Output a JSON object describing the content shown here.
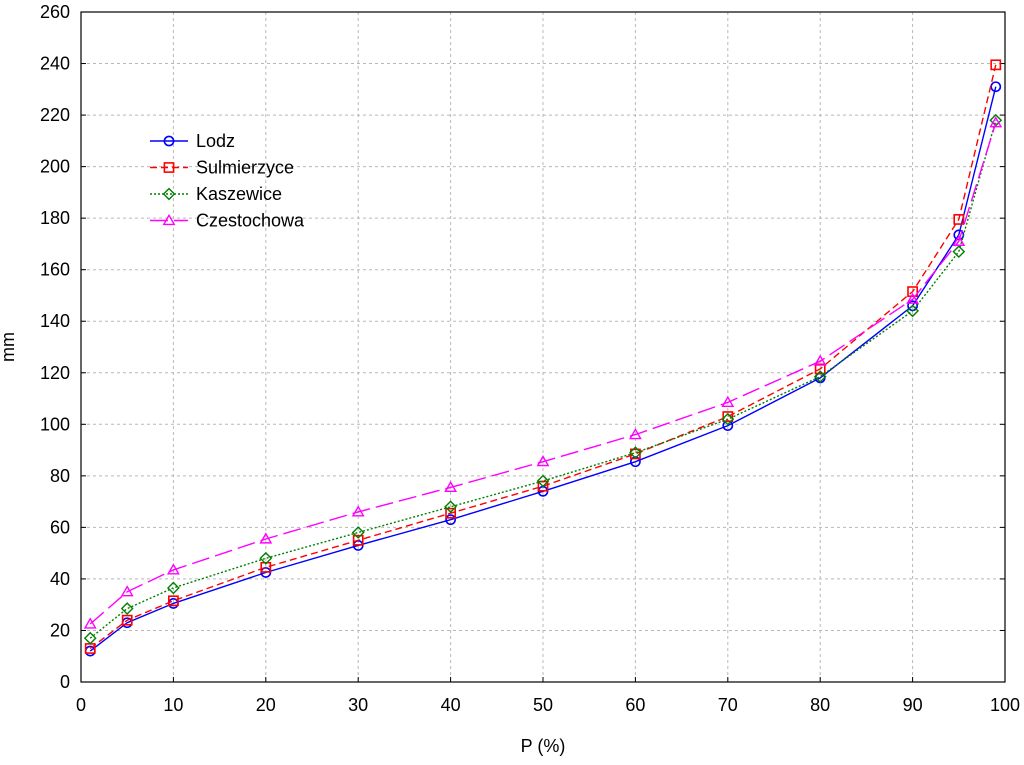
{
  "chart_data": {
    "type": "line",
    "xlabel": "P (%)",
    "ylabel": "mm",
    "xlim": [
      0,
      100
    ],
    "ylim": [
      0,
      260
    ],
    "xticks": [
      0,
      10,
      20,
      30,
      40,
      50,
      60,
      70,
      80,
      90,
      100
    ],
    "yticks": [
      0,
      20,
      40,
      60,
      80,
      100,
      120,
      140,
      160,
      180,
      200,
      220,
      240,
      260
    ],
    "grid": true,
    "legend_position": "upper-left",
    "x": [
      1,
      5,
      10,
      20,
      30,
      40,
      50,
      60,
      70,
      80,
      90,
      95,
      99
    ],
    "series": [
      {
        "name": "Lodz",
        "color": "#0000ff",
        "marker": "circle",
        "dash": "solid",
        "values": [
          12,
          23,
          30.5,
          42.5,
          53,
          63,
          74,
          85.5,
          99.5,
          118,
          146,
          173.5,
          231
        ]
      },
      {
        "name": "Sulmierzyce",
        "color": "#ff0000",
        "marker": "square",
        "dash": "dashed",
        "values": [
          13,
          24,
          31.5,
          44.5,
          55,
          65.5,
          76,
          88.5,
          103,
          121.5,
          151.5,
          179.5,
          239.5
        ]
      },
      {
        "name": "Kaszewice",
        "color": "#008000",
        "marker": "diamond",
        "dash": "dotted",
        "values": [
          17,
          28.5,
          36.5,
          48,
          58,
          68,
          78,
          89,
          102,
          118.5,
          144,
          167,
          218
        ]
      },
      {
        "name": "Czestochowa",
        "color": "#ff00ff",
        "marker": "triangle",
        "dash": "long-dash",
        "values": [
          22.5,
          35,
          43.5,
          55.5,
          66,
          75.5,
          85.5,
          96,
          108.5,
          124.5,
          148.5,
          171,
          217
        ]
      }
    ]
  }
}
